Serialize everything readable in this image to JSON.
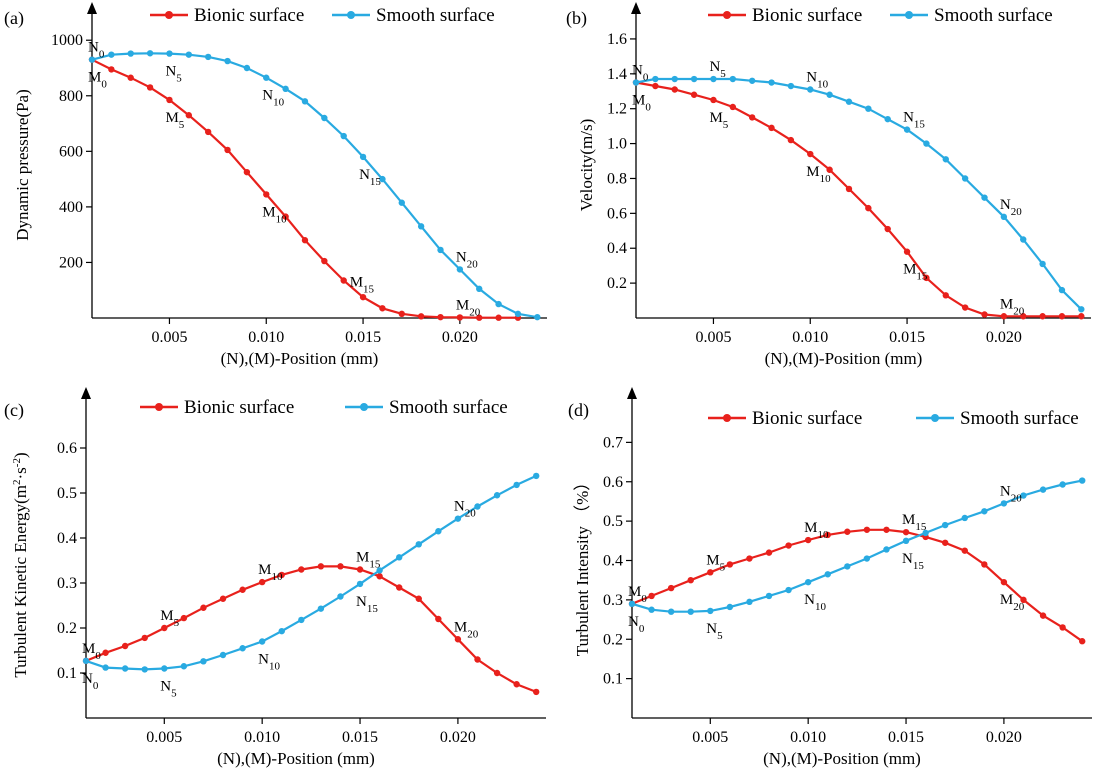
{
  "chart_data": [
    {
      "panel": "(a)",
      "type": "line",
      "xlabel": "(N),(M)-Position (mm)",
      "ylabel": "Dynamic pressure(Pa)",
      "xlim": [
        0.001,
        0.0245
      ],
      "ylim": [
        0,
        1080
      ],
      "xticks": [
        "0.005",
        "0.010",
        "0.015",
        "0.020"
      ],
      "xtick_values": [
        0.005,
        0.01,
        0.015,
        0.02
      ],
      "yticks": [
        "200",
        "400",
        "600",
        "800",
        "1000"
      ],
      "ytick_values": [
        200,
        400,
        600,
        800,
        1000
      ],
      "legend": "top",
      "series": [
        {
          "name": "Bionic surface",
          "color": "#e8211c",
          "x": [
            0.001,
            0.002,
            0.003,
            0.004,
            0.005,
            0.006,
            0.007,
            0.008,
            0.009,
            0.01,
            0.011,
            0.012,
            0.013,
            0.014,
            0.015,
            0.016,
            0.017,
            0.018,
            0.019,
            0.02,
            0.021,
            0.022,
            0.023
          ],
          "y": [
            930,
            895,
            865,
            830,
            785,
            730,
            670,
            605,
            525,
            445,
            365,
            280,
            205,
            135,
            75,
            35,
            15,
            6,
            3,
            2,
            1,
            1,
            1
          ]
        },
        {
          "name": "Smooth surface",
          "color": "#29aae1",
          "x": [
            0.001,
            0.002,
            0.003,
            0.004,
            0.005,
            0.006,
            0.007,
            0.008,
            0.009,
            0.01,
            0.011,
            0.012,
            0.013,
            0.014,
            0.015,
            0.016,
            0.017,
            0.018,
            0.019,
            0.02,
            0.021,
            0.022,
            0.023,
            0.024
          ],
          "y": [
            930,
            948,
            952,
            953,
            952,
            948,
            940,
            925,
            900,
            865,
            825,
            780,
            720,
            655,
            580,
            500,
            415,
            330,
            245,
            175,
            105,
            50,
            15,
            3
          ]
        }
      ],
      "annotations": [
        {
          "base": "N",
          "sub": "0",
          "x": 0.001,
          "y": 930,
          "pos": "above",
          "series": 1
        },
        {
          "base": "M",
          "sub": "0",
          "x": 0.001,
          "y": 930,
          "pos": "below",
          "series": 0
        },
        {
          "base": "N",
          "sub": "5",
          "x": 0.005,
          "y": 952,
          "pos": "below",
          "series": 1
        },
        {
          "base": "M",
          "sub": "5",
          "x": 0.005,
          "y": 785,
          "pos": "below",
          "series": 0
        },
        {
          "base": "N",
          "sub": "10",
          "x": 0.01,
          "y": 865,
          "pos": "below",
          "series": 1
        },
        {
          "base": "M",
          "sub": "10",
          "x": 0.01,
          "y": 445,
          "pos": "below",
          "series": 0
        },
        {
          "base": "N",
          "sub": "15",
          "x": 0.015,
          "y": 580,
          "pos": "below",
          "series": 1
        },
        {
          "base": "M",
          "sub": "15",
          "x": 0.014,
          "y": 135,
          "pos": "right",
          "series": 0
        },
        {
          "base": "N",
          "sub": "20",
          "x": 0.02,
          "y": 175,
          "pos": "above",
          "series": 1
        },
        {
          "base": "M",
          "sub": "20",
          "x": 0.02,
          "y": 2,
          "pos": "above",
          "series": 0
        }
      ]
    },
    {
      "panel": "(b)",
      "type": "line",
      "xlabel": "(N),(M)-Position (mm)",
      "ylabel": "Velocity(m/s)",
      "xlim": [
        0.001,
        0.0245
      ],
      "ylim": [
        0,
        1.72
      ],
      "xticks": [
        "0.005",
        "0.010",
        "0.015",
        "0.020"
      ],
      "xtick_values": [
        0.005,
        0.01,
        0.015,
        0.02
      ],
      "yticks": [
        "0.2",
        "0.4",
        "0.6",
        "0.8",
        "1.0",
        "1.2",
        "1.4",
        "1.6"
      ],
      "ytick_values": [
        0.2,
        0.4,
        0.6,
        0.8,
        1.0,
        1.2,
        1.4,
        1.6
      ],
      "legend": "top",
      "series": [
        {
          "name": "Bionic surface",
          "color": "#e8211c",
          "x": [
            0.001,
            0.002,
            0.003,
            0.004,
            0.005,
            0.006,
            0.007,
            0.008,
            0.009,
            0.01,
            0.011,
            0.012,
            0.013,
            0.014,
            0.015,
            0.016,
            0.017,
            0.018,
            0.019,
            0.02,
            0.021,
            0.022,
            0.023,
            0.024
          ],
          "y": [
            1.35,
            1.33,
            1.31,
            1.28,
            1.25,
            1.21,
            1.15,
            1.09,
            1.02,
            0.94,
            0.85,
            0.74,
            0.63,
            0.51,
            0.38,
            0.23,
            0.13,
            0.06,
            0.02,
            0.01,
            0.01,
            0.01,
            0.01,
            0.01
          ]
        },
        {
          "name": "Smooth surface",
          "color": "#29aae1",
          "x": [
            0.001,
            0.002,
            0.003,
            0.004,
            0.005,
            0.006,
            0.007,
            0.008,
            0.009,
            0.01,
            0.011,
            0.012,
            0.013,
            0.014,
            0.015,
            0.016,
            0.017,
            0.018,
            0.019,
            0.02,
            0.021,
            0.022,
            0.023,
            0.024
          ],
          "y": [
            1.35,
            1.37,
            1.37,
            1.37,
            1.37,
            1.37,
            1.36,
            1.35,
            1.33,
            1.31,
            1.28,
            1.24,
            1.2,
            1.14,
            1.08,
            1.0,
            0.91,
            0.8,
            0.69,
            0.58,
            0.45,
            0.31,
            0.16,
            0.05
          ]
        }
      ],
      "annotations": [
        {
          "base": "N",
          "sub": "0",
          "x": 0.001,
          "y": 1.35,
          "pos": "above",
          "series": 1
        },
        {
          "base": "M",
          "sub": "0",
          "x": 0.001,
          "y": 1.35,
          "pos": "below",
          "series": 0
        },
        {
          "base": "N",
          "sub": "5",
          "x": 0.005,
          "y": 1.37,
          "pos": "above",
          "series": 1
        },
        {
          "base": "M",
          "sub": "5",
          "x": 0.005,
          "y": 1.25,
          "pos": "below",
          "series": 0
        },
        {
          "base": "N",
          "sub": "10",
          "x": 0.01,
          "y": 1.31,
          "pos": "above",
          "series": 1
        },
        {
          "base": "M",
          "sub": "10",
          "x": 0.01,
          "y": 0.94,
          "pos": "below",
          "series": 0
        },
        {
          "base": "N",
          "sub": "15",
          "x": 0.015,
          "y": 1.08,
          "pos": "above",
          "series": 1
        },
        {
          "base": "M",
          "sub": "15",
          "x": 0.015,
          "y": 0.38,
          "pos": "below",
          "series": 0
        },
        {
          "base": "N",
          "sub": "20",
          "x": 0.02,
          "y": 0.58,
          "pos": "above",
          "series": 1
        },
        {
          "base": "M",
          "sub": "20",
          "x": 0.02,
          "y": 0.01,
          "pos": "above",
          "series": 0
        }
      ]
    },
    {
      "panel": "(c)",
      "type": "line",
      "xlabel": "(N),(M)-Position (mm)",
      "ylabel": "Turbulent Kinetic Energy(m²·s⁻²)",
      "ylabel_parts": [
        "Turbulent Kinetic Energy(m",
        "2",
        "·s",
        "-2",
        ")"
      ],
      "xlim": [
        0.001,
        0.0245
      ],
      "ylim": [
        0,
        0.7
      ],
      "xticks": [
        "0.005",
        "0.010",
        "0.015",
        "0.020"
      ],
      "xtick_values": [
        0.005,
        0.01,
        0.015,
        0.02
      ],
      "yticks": [
        "0.1",
        "0.2",
        "0.3",
        "0.4",
        "0.5",
        "0.6"
      ],
      "ytick_values": [
        0.1,
        0.2,
        0.3,
        0.4,
        0.5,
        0.6
      ],
      "legend": "top",
      "series": [
        {
          "name": "Bionic surface",
          "color": "#e8211c",
          "x": [
            0.001,
            0.002,
            0.003,
            0.004,
            0.005,
            0.006,
            0.007,
            0.008,
            0.009,
            0.01,
            0.011,
            0.012,
            0.013,
            0.014,
            0.015,
            0.016,
            0.017,
            0.018,
            0.019,
            0.02,
            0.021,
            0.022,
            0.023,
            0.024
          ],
          "y": [
            0.127,
            0.145,
            0.16,
            0.178,
            0.2,
            0.222,
            0.245,
            0.265,
            0.285,
            0.302,
            0.318,
            0.33,
            0.337,
            0.337,
            0.33,
            0.315,
            0.29,
            0.265,
            0.22,
            0.175,
            0.13,
            0.1,
            0.075,
            0.058
          ]
        },
        {
          "name": "Smooth surface",
          "color": "#29aae1",
          "x": [
            0.001,
            0.002,
            0.003,
            0.004,
            0.005,
            0.006,
            0.007,
            0.008,
            0.009,
            0.01,
            0.011,
            0.012,
            0.013,
            0.014,
            0.015,
            0.016,
            0.017,
            0.018,
            0.019,
            0.02,
            0.021,
            0.022,
            0.023,
            0.024
          ],
          "y": [
            0.127,
            0.112,
            0.11,
            0.108,
            0.11,
            0.115,
            0.126,
            0.14,
            0.155,
            0.17,
            0.193,
            0.218,
            0.243,
            0.27,
            0.298,
            0.328,
            0.357,
            0.386,
            0.415,
            0.443,
            0.47,
            0.495,
            0.518,
            0.538
          ]
        }
      ],
      "annotations": [
        {
          "base": "M",
          "sub": "0",
          "x": 0.001,
          "y": 0.127,
          "pos": "above",
          "series": 0
        },
        {
          "base": "N",
          "sub": "0",
          "x": 0.001,
          "y": 0.127,
          "pos": "below",
          "series": 1
        },
        {
          "base": "M",
          "sub": "5",
          "x": 0.005,
          "y": 0.2,
          "pos": "above",
          "series": 0
        },
        {
          "base": "N",
          "sub": "5",
          "x": 0.005,
          "y": 0.11,
          "pos": "below",
          "series": 1
        },
        {
          "base": "M",
          "sub": "10",
          "x": 0.01,
          "y": 0.302,
          "pos": "above",
          "series": 0
        },
        {
          "base": "N",
          "sub": "10",
          "x": 0.01,
          "y": 0.17,
          "pos": "below",
          "series": 1
        },
        {
          "base": "M",
          "sub": "15",
          "x": 0.015,
          "y": 0.33,
          "pos": "above",
          "series": 0
        },
        {
          "base": "N",
          "sub": "15",
          "x": 0.015,
          "y": 0.298,
          "pos": "below",
          "series": 1
        },
        {
          "base": "N",
          "sub": "20",
          "x": 0.02,
          "y": 0.443,
          "pos": "above",
          "series": 1
        },
        {
          "base": "M",
          "sub": "20",
          "x": 0.02,
          "y": 0.175,
          "pos": "above",
          "series": 0
        }
      ]
    },
    {
      "panel": "(d)",
      "type": "line",
      "xlabel": "(N),(M)-Position (mm)",
      "ylabel": "Turbulent Intensity （%）",
      "xlim": [
        0.001,
        0.0245
      ],
      "ylim": [
        0,
        0.8
      ],
      "xticks": [
        "0.005",
        "0.010",
        "0.015",
        "0.020"
      ],
      "xtick_values": [
        0.005,
        0.01,
        0.015,
        0.02
      ],
      "yticks": [
        "0.1",
        "0.2",
        "0.3",
        "0.4",
        "0.5",
        "0.6",
        "0.7"
      ],
      "ytick_values": [
        0.1,
        0.2,
        0.3,
        0.4,
        0.5,
        0.6,
        0.7
      ],
      "legend": "top",
      "series": [
        {
          "name": "Bionic surface",
          "color": "#e8211c",
          "x": [
            0.001,
            0.002,
            0.003,
            0.004,
            0.005,
            0.006,
            0.007,
            0.008,
            0.009,
            0.01,
            0.011,
            0.012,
            0.013,
            0.014,
            0.015,
            0.016,
            0.017,
            0.018,
            0.019,
            0.02,
            0.021,
            0.022,
            0.023,
            0.024
          ],
          "y": [
            0.29,
            0.31,
            0.33,
            0.35,
            0.37,
            0.39,
            0.405,
            0.42,
            0.438,
            0.452,
            0.465,
            0.473,
            0.478,
            0.478,
            0.472,
            0.46,
            0.445,
            0.425,
            0.39,
            0.345,
            0.3,
            0.26,
            0.23,
            0.195
          ]
        },
        {
          "name": "Smooth surface",
          "color": "#29aae1",
          "x": [
            0.001,
            0.002,
            0.003,
            0.004,
            0.005,
            0.006,
            0.007,
            0.008,
            0.009,
            0.01,
            0.011,
            0.012,
            0.013,
            0.014,
            0.015,
            0.016,
            0.017,
            0.018,
            0.019,
            0.02,
            0.021,
            0.022,
            0.023,
            0.024
          ],
          "y": [
            0.29,
            0.275,
            0.27,
            0.27,
            0.272,
            0.282,
            0.295,
            0.31,
            0.325,
            0.345,
            0.365,
            0.385,
            0.405,
            0.428,
            0.45,
            0.47,
            0.49,
            0.508,
            0.525,
            0.545,
            0.565,
            0.58,
            0.593,
            0.603
          ]
        }
      ],
      "annotations": [
        {
          "base": "M",
          "sub": "0",
          "x": 0.001,
          "y": 0.29,
          "pos": "above",
          "series": 0
        },
        {
          "base": "N",
          "sub": "0",
          "x": 0.001,
          "y": 0.29,
          "pos": "below",
          "series": 1
        },
        {
          "base": "M",
          "sub": "5",
          "x": 0.005,
          "y": 0.37,
          "pos": "above",
          "series": 0
        },
        {
          "base": "N",
          "sub": "5",
          "x": 0.005,
          "y": 0.272,
          "pos": "below",
          "series": 1
        },
        {
          "base": "M",
          "sub": "10",
          "x": 0.01,
          "y": 0.452,
          "pos": "above",
          "series": 0
        },
        {
          "base": "N",
          "sub": "10",
          "x": 0.01,
          "y": 0.345,
          "pos": "below",
          "series": 1
        },
        {
          "base": "M",
          "sub": "15",
          "x": 0.015,
          "y": 0.472,
          "pos": "above",
          "series": 0
        },
        {
          "base": "N",
          "sub": "15",
          "x": 0.015,
          "y": 0.45,
          "pos": "below",
          "series": 1
        },
        {
          "base": "N",
          "sub": "20",
          "x": 0.02,
          "y": 0.545,
          "pos": "above",
          "series": 1
        },
        {
          "base": "M",
          "sub": "20",
          "x": 0.02,
          "y": 0.345,
          "pos": "below",
          "series": 0
        }
      ]
    }
  ]
}
